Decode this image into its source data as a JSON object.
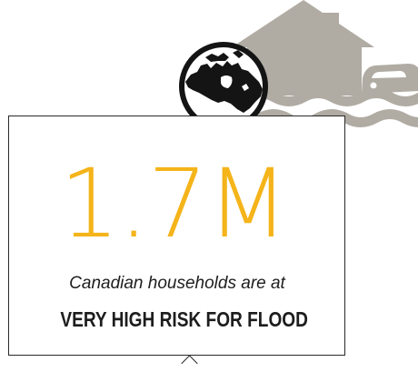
{
  "stat": {
    "value": "1.7M",
    "subtitle": "Canadian households are at",
    "emphasis": "VERY HIGH RISK FOR FLOOD"
  },
  "icons": [
    "flooded-house-icon",
    "flooded-car-icon",
    "flood-water-icon",
    "canada-map-icon"
  ],
  "colors": {
    "accent": "#f4b41a",
    "illustration": "#b0aba3",
    "ink": "#1d1d1d",
    "card_border": "#2a2a2a",
    "background": "#ffffff"
  }
}
